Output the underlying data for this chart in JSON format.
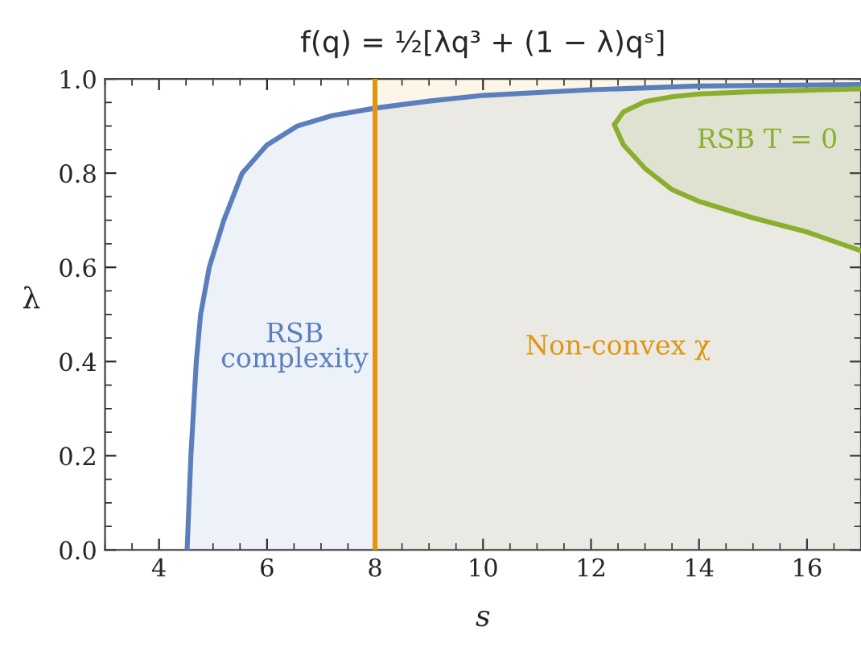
{
  "chart_data": {
    "type": "area",
    "title": "f(q) = ½[λq³ + (1 − λ)qˢ]",
    "xlabel": "s",
    "ylabel": "λ",
    "series": [
      {
        "name": "RSB complexity",
        "color": "#5b7fbc",
        "x": [
          4.52,
          4.59,
          4.69,
          4.77,
          4.93,
          5.2,
          5.54,
          6.0,
          6.56,
          7.2,
          8,
          9,
          10,
          12,
          14,
          17
        ],
        "values": [
          0.0,
          0.2,
          0.4,
          0.5,
          0.6,
          0.7,
          0.8,
          0.86,
          0.9,
          0.922,
          0.938,
          0.953,
          0.965,
          0.977,
          0.985,
          0.988
        ]
      },
      {
        "name": "RSB T = 0",
        "color": "#8aaf2e",
        "x": [
          17,
          16,
          15,
          14,
          13.5,
          13.0,
          12.6,
          12.43,
          12.6,
          13.0,
          13.5,
          14,
          15,
          16,
          17
        ],
        "values": [
          0.979,
          0.976,
          0.973,
          0.968,
          0.962,
          0.952,
          0.93,
          0.903,
          0.86,
          0.81,
          0.765,
          0.74,
          0.705,
          0.675,
          0.635
        ]
      }
    ],
    "ref_lines": [
      {
        "axis": "x",
        "value": 8,
        "color": "#e0960f"
      }
    ],
    "bands": [
      {
        "axis": "x",
        "from": 8,
        "to": 17,
        "label": "Non-convex χ",
        "color": "#e0960f"
      }
    ],
    "xlim": [
      3,
      17
    ],
    "ylim": [
      0,
      1
    ],
    "xticks": [
      4,
      6,
      8,
      10,
      12,
      14,
      16
    ],
    "yticks": [
      {
        "value": 0,
        "label": "0.0"
      },
      {
        "value": 0.2,
        "label": "0.2"
      },
      {
        "value": 0.4,
        "label": "0.4"
      },
      {
        "value": 0.6,
        "label": "0.6"
      },
      {
        "value": 0.8,
        "label": "0.8"
      },
      {
        "value": 1,
        "label": "1.0"
      }
    ],
    "grid": false,
    "legend": false
  }
}
